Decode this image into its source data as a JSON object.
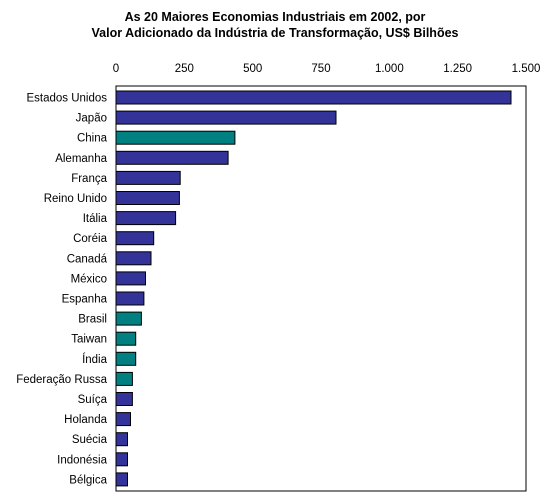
{
  "chart_data": {
    "type": "bar",
    "orientation": "horizontal",
    "title": [
      "As 20 Maiores Economias Industriais em 2002, por",
      "Valor Adicionado da Indústria de Transformação, US$ Bilhões"
    ],
    "xlabel": "",
    "ylabel": "",
    "xlim": [
      0,
      1500
    ],
    "xticks": [
      0,
      250,
      500,
      750,
      1000,
      1250,
      1500
    ],
    "xtick_labels": [
      "0",
      "250",
      "500",
      "750",
      "1.000",
      "1.250",
      "1.500"
    ],
    "xaxis_position": "top",
    "grid": false,
    "legend": "none",
    "colors": {
      "default": "#333399",
      "highlight": "#008080",
      "border": "#000000"
    },
    "categories": [
      "Estados Unidos",
      "Japão",
      "China",
      "Alemanha",
      "França",
      "Reino Unido",
      "Itália",
      "Coréia",
      "Canadá",
      "México",
      "Espanha",
      "Brasil",
      "Taiwan",
      "Índia",
      "Federação Russa",
      "Suíça",
      "Holanda",
      "Suécia",
      "Indonésia",
      "Bélgica"
    ],
    "values": [
      1445,
      805,
      435,
      410,
      235,
      232,
      218,
      138,
      128,
      108,
      102,
      93,
      72,
      72,
      60,
      60,
      53,
      42,
      42,
      42
    ],
    "highlighted": [
      false,
      false,
      true,
      false,
      false,
      false,
      false,
      false,
      false,
      false,
      false,
      true,
      true,
      true,
      true,
      false,
      false,
      false,
      false,
      false
    ]
  }
}
